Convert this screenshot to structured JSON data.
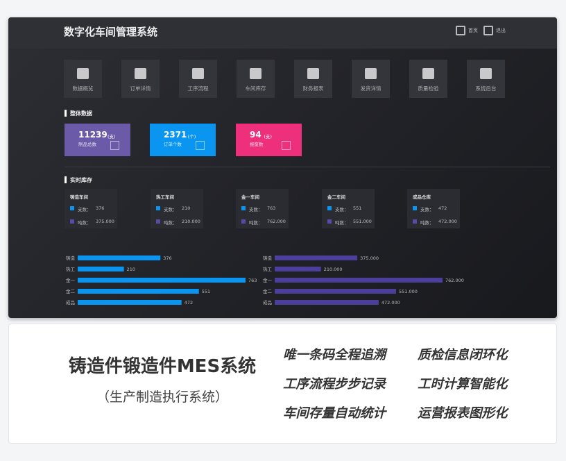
{
  "header": {
    "title": "数字化车间管理系统",
    "nav": [
      "首页",
      "退出"
    ]
  },
  "menu": [
    "数据概览",
    "订单详情",
    "工序流程",
    "车间库存",
    "财务报表",
    "发货详情",
    "质量检验",
    "系统后台"
  ],
  "overview": {
    "title": "整体数据",
    "cards": [
      {
        "value": 11239,
        "unit": "(支)",
        "label": "制品总数",
        "color": "#6a5aa8"
      },
      {
        "value": 2371,
        "unit": "(个)",
        "label": "订单个数",
        "color": "#0a96f0"
      },
      {
        "value": 94,
        "unit": "(支)",
        "label": "报废数",
        "color": "#ee2f7c"
      }
    ]
  },
  "inventory": {
    "title": "实时库存",
    "workshops": [
      "铸造车间",
      "热工车间",
      "金一车间",
      "金二车间",
      "成品仓库"
    ],
    "count_label": "支数：",
    "weight_label": "吨数：",
    "count_color": "#0a96f0",
    "weight_color": "#5a4aa8"
  },
  "chart_data": [
    {
      "type": "bar",
      "orientation": "horizontal",
      "categories": [
        "铸造",
        "热工",
        "金一",
        "金二",
        "成品"
      ],
      "values": [
        376,
        210,
        763,
        551,
        472
      ],
      "color": "#0a96f0"
    },
    {
      "type": "bar",
      "orientation": "horizontal",
      "categories": [
        "铸造",
        "热工",
        "金一",
        "金二",
        "成品"
      ],
      "values": [
        375,
        210,
        762,
        551,
        472
      ],
      "value_labels": [
        "375.000",
        "210.000",
        "762.000",
        "551.000",
        "472.000"
      ],
      "color": "#4b3f9c"
    }
  ],
  "banner": {
    "title": "铸造件锻造件MES系统",
    "subtitle": "（生产制造执行系统）",
    "features": [
      "唯一条码全程追溯",
      "质检信息闭环化",
      "工序流程步步记录",
      "工时计算智能化",
      "车间存量自动统计",
      "运营报表图形化"
    ]
  }
}
